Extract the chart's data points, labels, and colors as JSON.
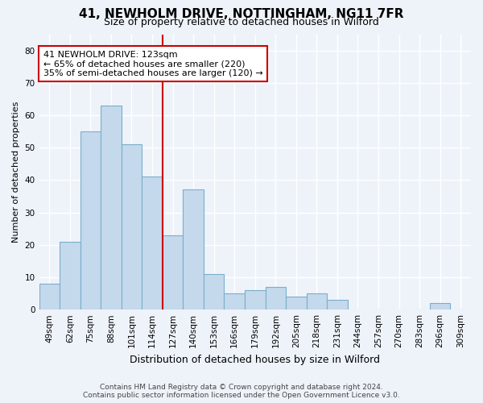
{
  "title_line1": "41, NEWHOLM DRIVE, NOTTINGHAM, NG11 7FR",
  "title_line2": "Size of property relative to detached houses in Wilford",
  "xlabel": "Distribution of detached houses by size in Wilford",
  "ylabel": "Number of detached properties",
  "categories": [
    "49sqm",
    "62sqm",
    "75sqm",
    "88sqm",
    "101sqm",
    "114sqm",
    "127sqm",
    "140sqm",
    "153sqm",
    "166sqm",
    "179sqm",
    "192sqm",
    "205sqm",
    "218sqm",
    "231sqm",
    "244sqm",
    "257sqm",
    "270sqm",
    "283sqm",
    "296sqm",
    "309sqm"
  ],
  "values": [
    8,
    21,
    55,
    63,
    51,
    41,
    23,
    37,
    11,
    5,
    6,
    7,
    4,
    5,
    3,
    0,
    0,
    0,
    0,
    2,
    0
  ],
  "bar_color": "#c5d9ec",
  "bar_edge_color": "#7aaecb",
  "vline_color": "#cc0000",
  "vline_x": 6.0,
  "annotation_text": "41 NEWHOLM DRIVE: 123sqm\n← 65% of detached houses are smaller (220)\n35% of semi-detached houses are larger (120) →",
  "annotation_box_facecolor": "#ffffff",
  "annotation_box_edgecolor": "#cc0000",
  "ylim": [
    0,
    85
  ],
  "yticks": [
    0,
    10,
    20,
    30,
    40,
    50,
    60,
    70,
    80
  ],
  "footnote1": "Contains HM Land Registry data © Crown copyright and database right 2024.",
  "footnote2": "Contains public sector information licensed under the Open Government Licence v3.0.",
  "bg_color": "#eef3fa",
  "grid_color": "#ffffff",
  "title1_fontsize": 11,
  "title2_fontsize": 9,
  "ylabel_fontsize": 8,
  "xlabel_fontsize": 9,
  "tick_fontsize": 7.5,
  "annot_fontsize": 8
}
